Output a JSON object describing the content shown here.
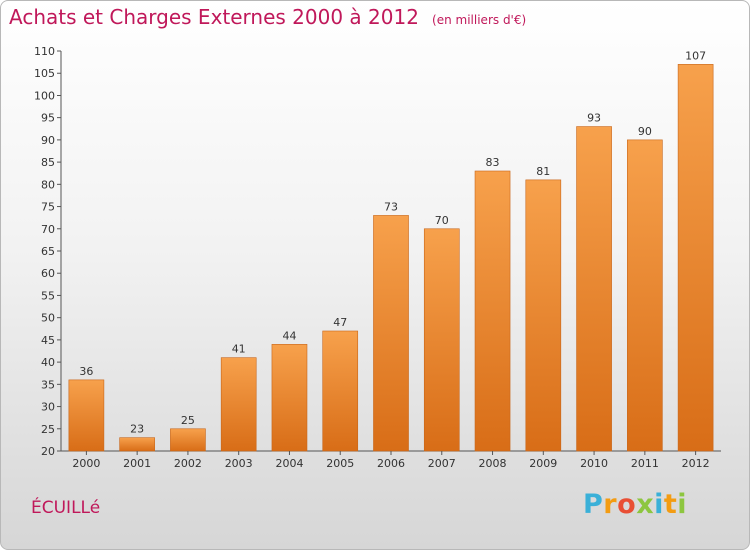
{
  "chart_data": {
    "type": "bar",
    "title": "Achats et Charges Externes 2000 à 2012",
    "subtitle": "(en milliers d'€)",
    "categories": [
      "2000",
      "2001",
      "2002",
      "2003",
      "2004",
      "2005",
      "2006",
      "2007",
      "2008",
      "2009",
      "2010",
      "2011",
      "2012"
    ],
    "values": [
      36,
      23,
      25,
      41,
      44,
      47,
      73,
      70,
      83,
      81,
      93,
      90,
      107
    ],
    "ylim": [
      20,
      110
    ],
    "yticks": [
      20,
      25,
      30,
      35,
      40,
      45,
      50,
      55,
      60,
      65,
      70,
      75,
      80,
      85,
      90,
      95,
      100,
      105,
      110
    ],
    "xlabel": "",
    "ylabel": "",
    "grid": false,
    "bar_color": "#e8822a",
    "bar_color_light": "#f7a14c",
    "bar_color_dark": "#d86d17"
  },
  "commune": "ÉCUILLé",
  "logo": {
    "letters": [
      "P",
      "r",
      "o",
      "x",
      "i",
      "t",
      "i"
    ],
    "colors": [
      "#3ab0d8",
      "#f39c12",
      "#e94f35",
      "#8dc63f",
      "#3ab0d8",
      "#f39c12",
      "#8dc63f"
    ]
  }
}
